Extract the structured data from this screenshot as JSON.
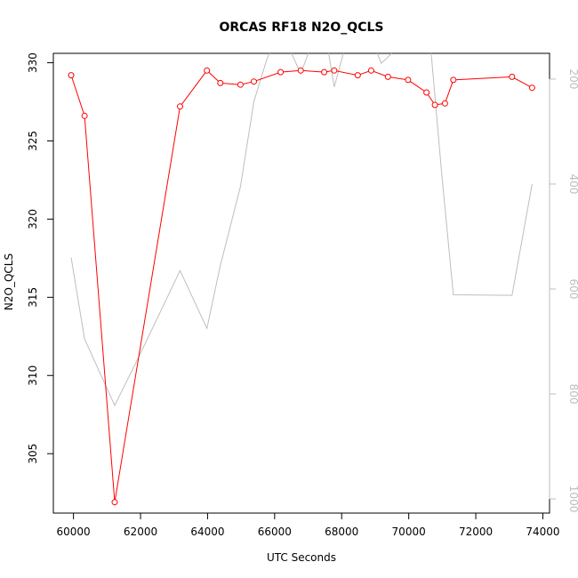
{
  "chart_data": {
    "type": "line",
    "title": "ORCAS RF18 N2O_QCLS",
    "xlabel": "UTC Seconds",
    "ylabel": "N2O_QCLS",
    "xlim": [
      59400,
      74200
    ],
    "ylim": [
      301.2,
      330.6
    ],
    "y2lim": [
      1027,
      151
    ],
    "y2_reversed": true,
    "x_ticks": [
      60000,
      62000,
      64000,
      66000,
      68000,
      70000,
      72000,
      74000
    ],
    "x_tick_labels": [
      "60000",
      "62000",
      "64000",
      "66000",
      "68000",
      "70000",
      "72000",
      "74000"
    ],
    "y_ticks": [
      305,
      310,
      315,
      320,
      325,
      330
    ],
    "y_tick_labels": [
      "305",
      "310",
      "315",
      "320",
      "325",
      "330"
    ],
    "y2_ticks": [
      200,
      400,
      600,
      800,
      1000
    ],
    "y2_tick_labels": [
      "200",
      "400",
      "600",
      "800",
      "1000"
    ],
    "series": [
      {
        "color": "#ff0000",
        "axis": "left",
        "markers": "open-circle",
        "x": [
          59930,
          60330,
          61230,
          63180,
          63980,
          64380,
          64980,
          65380,
          66180,
          66780,
          67480,
          67780,
          68480,
          68880,
          69380,
          69980,
          70530,
          70780,
          71080,
          71330,
          73080,
          73680
        ],
        "y": [
          329.2,
          326.6,
          301.9,
          327.2,
          329.5,
          328.7,
          328.6,
          328.8,
          329.4,
          329.5,
          329.4,
          329.5,
          329.2,
          329.5,
          329.1,
          328.9,
          328.1,
          327.3,
          327.4,
          328.9,
          329.1,
          328.4
        ]
      },
      {
        "color": "#bebebe",
        "axis": "right",
        "markers": "none",
        "x": [
          59930,
          60330,
          61230,
          61980,
          63180,
          63980,
          64380,
          64980,
          65380,
          65780,
          66180,
          66780,
          67180,
          67480,
          67780,
          68180,
          68780,
          69180,
          70080,
          70580,
          70980,
          71330,
          73080,
          73680
        ],
        "y": [
          540,
          695,
          822,
          725,
          565,
          675,
          555,
          405,
          243,
          160,
          105,
          190,
          120,
          100,
          215,
          120,
          105,
          170,
          115,
          85,
          378,
          611,
          612,
          400
        ]
      }
    ]
  }
}
